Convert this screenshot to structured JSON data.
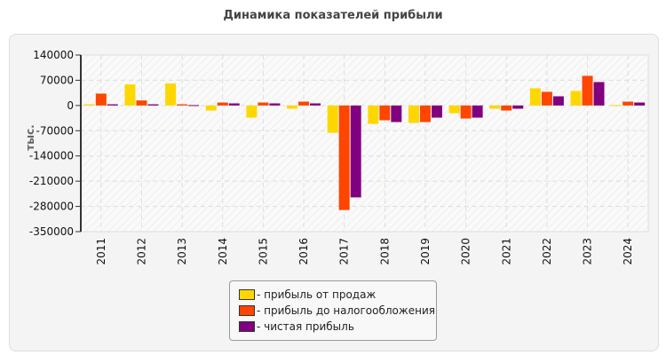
{
  "chart_data": {
    "type": "bar",
    "title": "Динамика показателей прибыли",
    "ylabel": "тыс.",
    "ylim": [
      -350000,
      140000
    ],
    "yticks": [
      140000,
      70000,
      0,
      -70000,
      -140000,
      -210000,
      -280000,
      -350000
    ],
    "grid": true,
    "legend_position": "bottom",
    "categories": [
      "2011",
      "2012",
      "2013",
      "2014",
      "2015",
      "2016",
      "2017",
      "2018",
      "2019",
      "2020",
      "2021",
      "2022",
      "2023",
      "2024"
    ],
    "series": [
      {
        "name": "- прибыль от продаж",
        "color": "#FFD700",
        "values": [
          3300,
          58400,
          61000,
          -14000,
          -33700,
          -9000,
          -75700,
          -51000,
          -48500,
          -21400,
          -9000,
          47700,
          40300,
          1000
        ]
      },
      {
        "name": "- прибыль до налогообложения",
        "color": "#FF4500",
        "values": [
          33000,
          14000,
          3300,
          8200,
          8200,
          10700,
          -290000,
          -41000,
          -46000,
          -36200,
          -14000,
          37900,
          82300,
          10700
        ]
      },
      {
        "name": "- чистая прибыль",
        "color": "#800080",
        "values": [
          3300,
          3300,
          1000,
          5800,
          5800,
          5800,
          -255000,
          -46000,
          -33700,
          -33700,
          -9000,
          25500,
          65000,
          8200
        ]
      }
    ]
  }
}
